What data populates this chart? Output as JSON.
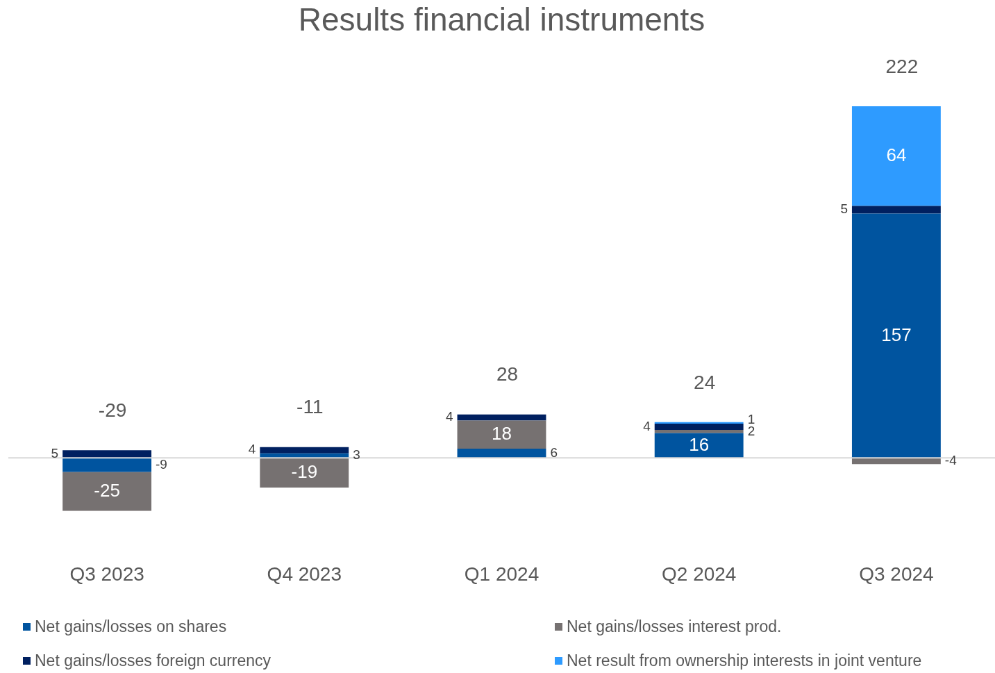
{
  "chart_data": {
    "type": "bar",
    "title": "Results financial instruments",
    "categories": [
      "Q3 2023",
      "Q4 2023",
      "Q1 2024",
      "Q2 2024",
      "Q3 2024"
    ],
    "stacked": true,
    "data_labels": true,
    "legend": "bottom",
    "grid": false,
    "series": [
      {
        "name": "Net gains/losses on shares",
        "color": "#00549f",
        "values": [
          -9,
          3,
          6,
          16,
          157
        ]
      },
      {
        "name": "Net gains/losses interest prod.",
        "color": "#767171",
        "values": [
          -25,
          -19,
          18,
          2,
          -4
        ]
      },
      {
        "name": "Net gains/losses foreign currency",
        "color": "#002060",
        "values": [
          5,
          4,
          4,
          4,
          5
        ]
      },
      {
        "name": "Net result from ownership interests in joint venture",
        "color": "#2e9bff",
        "values": [
          null,
          null,
          null,
          1,
          64
        ]
      }
    ],
    "totals": [
      "-29",
      "-11",
      "28",
      "24",
      "222"
    ]
  }
}
